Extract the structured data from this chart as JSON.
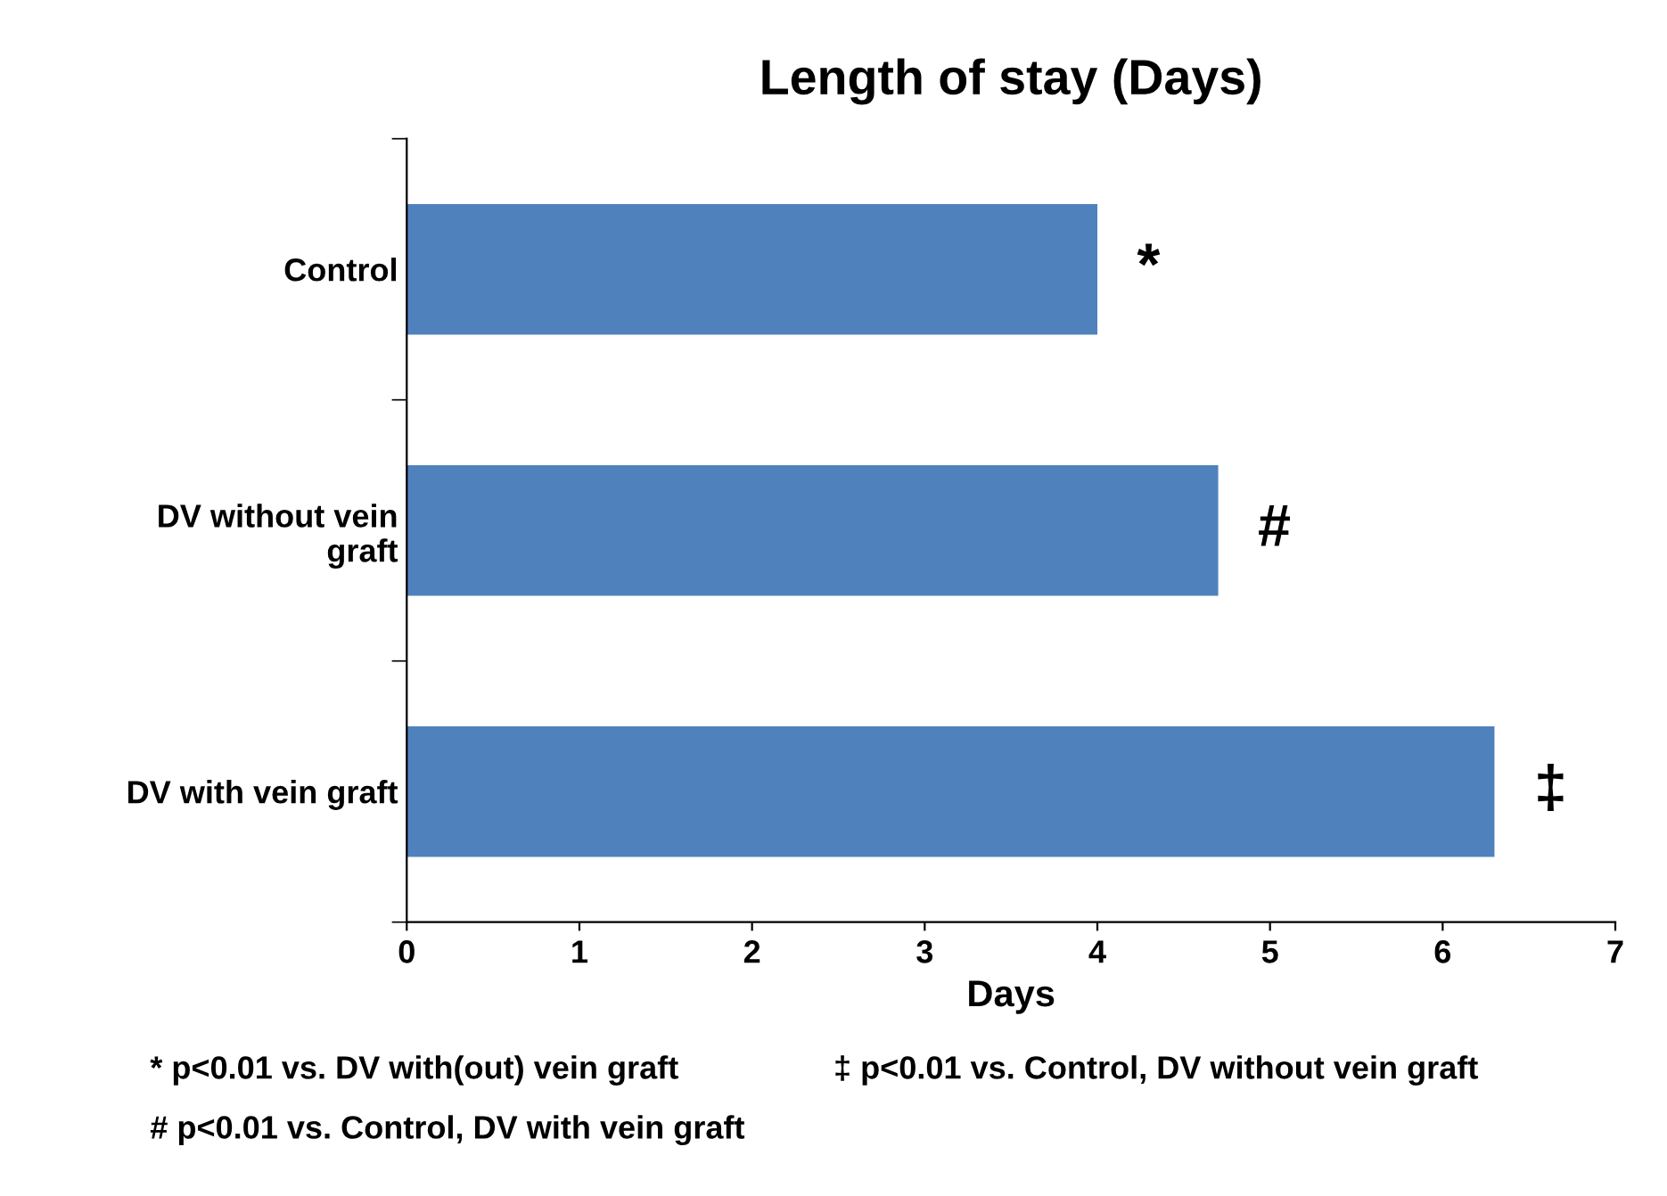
{
  "chart_data": {
    "type": "bar",
    "orientation": "horizontal",
    "title": "Length of stay (Days)",
    "xlabel": "Days",
    "categories": [
      "Control",
      "DV without vein\ngraft",
      "DV with vein graft"
    ],
    "values": [
      4.0,
      4.7,
      6.3
    ],
    "color": "#4f81bd",
    "xlim": [
      0,
      7
    ],
    "xticks": [
      0,
      1,
      2,
      3,
      4,
      5,
      6,
      7
    ],
    "grid": false,
    "legend": false,
    "annotations": [
      {
        "text": "*",
        "x": 4.0,
        "y": "Control"
      },
      {
        "text": "#",
        "x": 4.7,
        "y": "DV without vein\ngraft"
      },
      {
        "text": "‡",
        "x": 6.3,
        "y": "DV with vein graft"
      },
      "* p<0.01 vs. DV with(out) vein graft",
      "‡ p<0.01 vs. Control, DV without vein graft",
      "# p<0.01 vs. Control, DV with vein graft"
    ]
  }
}
